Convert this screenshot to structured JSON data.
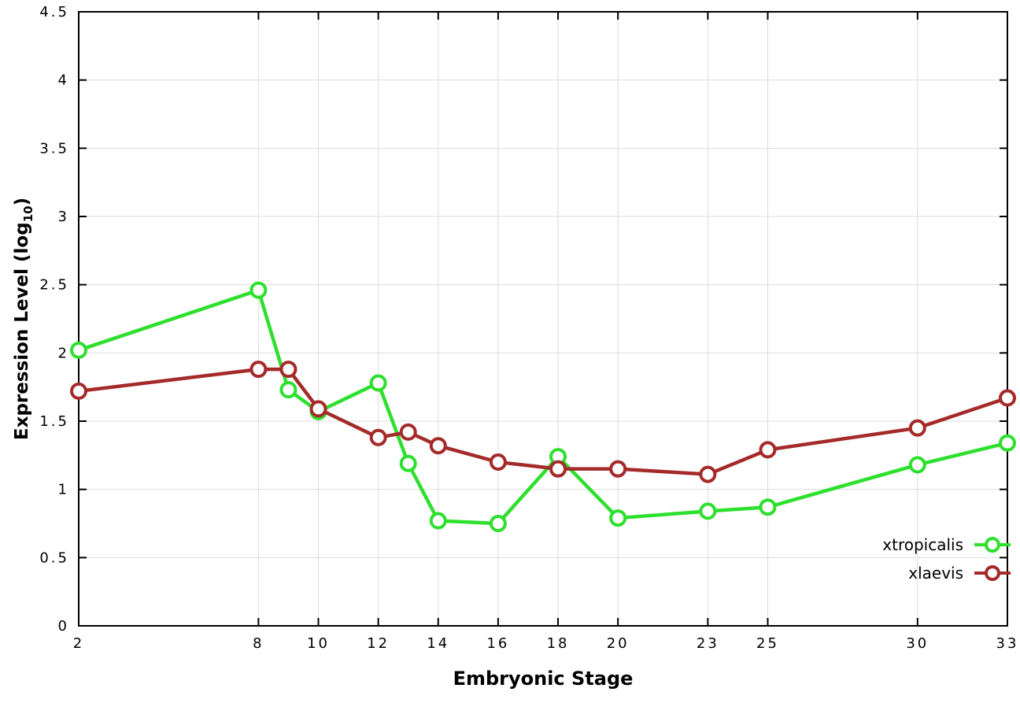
{
  "chart_data": {
    "type": "line",
    "title": "",
    "xlabel": "Embryonic Stage",
    "ylabel": "Expression Level (log10)",
    "ylabel_parts": {
      "prefix": "Expression Level (log",
      "subscript": "10",
      "suffix": ")"
    },
    "xlim": [
      2,
      33
    ],
    "ylim": [
      0,
      4.5
    ],
    "x_ticks": [
      2,
      8,
      10,
      12,
      14,
      16,
      18,
      20,
      23,
      25,
      30,
      33
    ],
    "y_ticks": [
      0,
      0.5,
      1,
      1.5,
      2,
      2.5,
      3,
      3.5,
      4,
      4.5
    ],
    "y_tick_labels": [
      "0",
      "0.5",
      "1",
      "1.5",
      "2",
      "2.5",
      "3",
      "3.5",
      "4",
      "4.5"
    ],
    "grid": true,
    "legend_position": "bottom-right",
    "background_color": "#ffffff",
    "grid_color": "#dcdcdc",
    "series": [
      {
        "name": "xtropicalis",
        "color": "#2de02d",
        "marker": "open-circle",
        "x": [
          2,
          8,
          9,
          10,
          12,
          13,
          14,
          16,
          18,
          20,
          23,
          25,
          30,
          33
        ],
        "y": [
          2.02,
          2.46,
          1.73,
          1.57,
          1.78,
          1.19,
          0.77,
          0.75,
          1.24,
          0.79,
          0.84,
          0.87,
          1.18,
          1.34
        ]
      },
      {
        "name": "xlaevis",
        "color": "#a52a2a",
        "marker": "open-circle",
        "x": [
          2,
          8,
          9,
          10,
          12,
          13,
          14,
          16,
          18,
          20,
          23,
          25,
          30,
          33
        ],
        "y": [
          1.72,
          1.88,
          1.88,
          1.59,
          1.38,
          1.42,
          1.32,
          1.2,
          1.15,
          1.15,
          1.11,
          1.29,
          1.45,
          1.67
        ]
      }
    ]
  }
}
